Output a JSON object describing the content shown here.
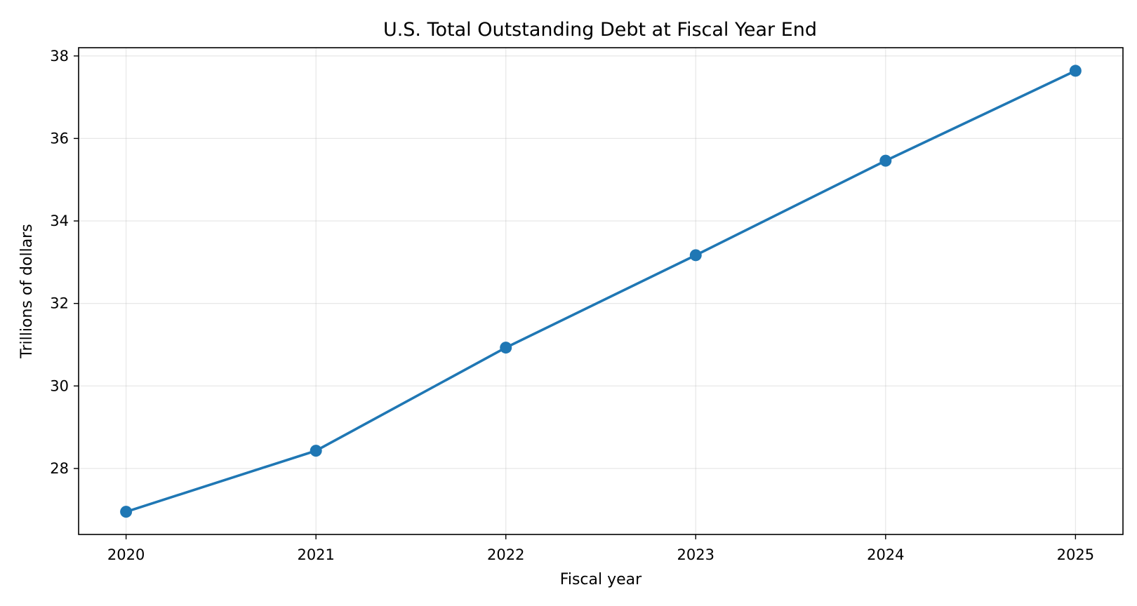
{
  "chart_data": {
    "type": "line",
    "title": "U.S. Total Outstanding Debt at Fiscal Year End",
    "xlabel": "Fiscal year",
    "ylabel": "Trillions of dollars",
    "x": [
      "2020",
      "2021",
      "2022",
      "2023",
      "2024",
      "2025"
    ],
    "x_ticks": [
      "2020",
      "2021",
      "2022",
      "2023",
      "2024",
      "2025"
    ],
    "y_ticks": [
      "28",
      "30",
      "32",
      "34",
      "36",
      "38"
    ],
    "ylim": [
      26.4,
      38.2
    ],
    "xlim": [
      2019.75,
      2025.25
    ],
    "grid": true,
    "legend": "none",
    "series": [
      {
        "values": [
          26.95,
          28.43,
          30.93,
          33.17,
          35.46,
          37.64
        ],
        "color": "#1f77b4",
        "marker": "circle"
      }
    ]
  },
  "colors": {
    "line": "#1f77b4",
    "axes": "#000000",
    "grid": "#b0b0b0",
    "background": "#ffffff"
  }
}
